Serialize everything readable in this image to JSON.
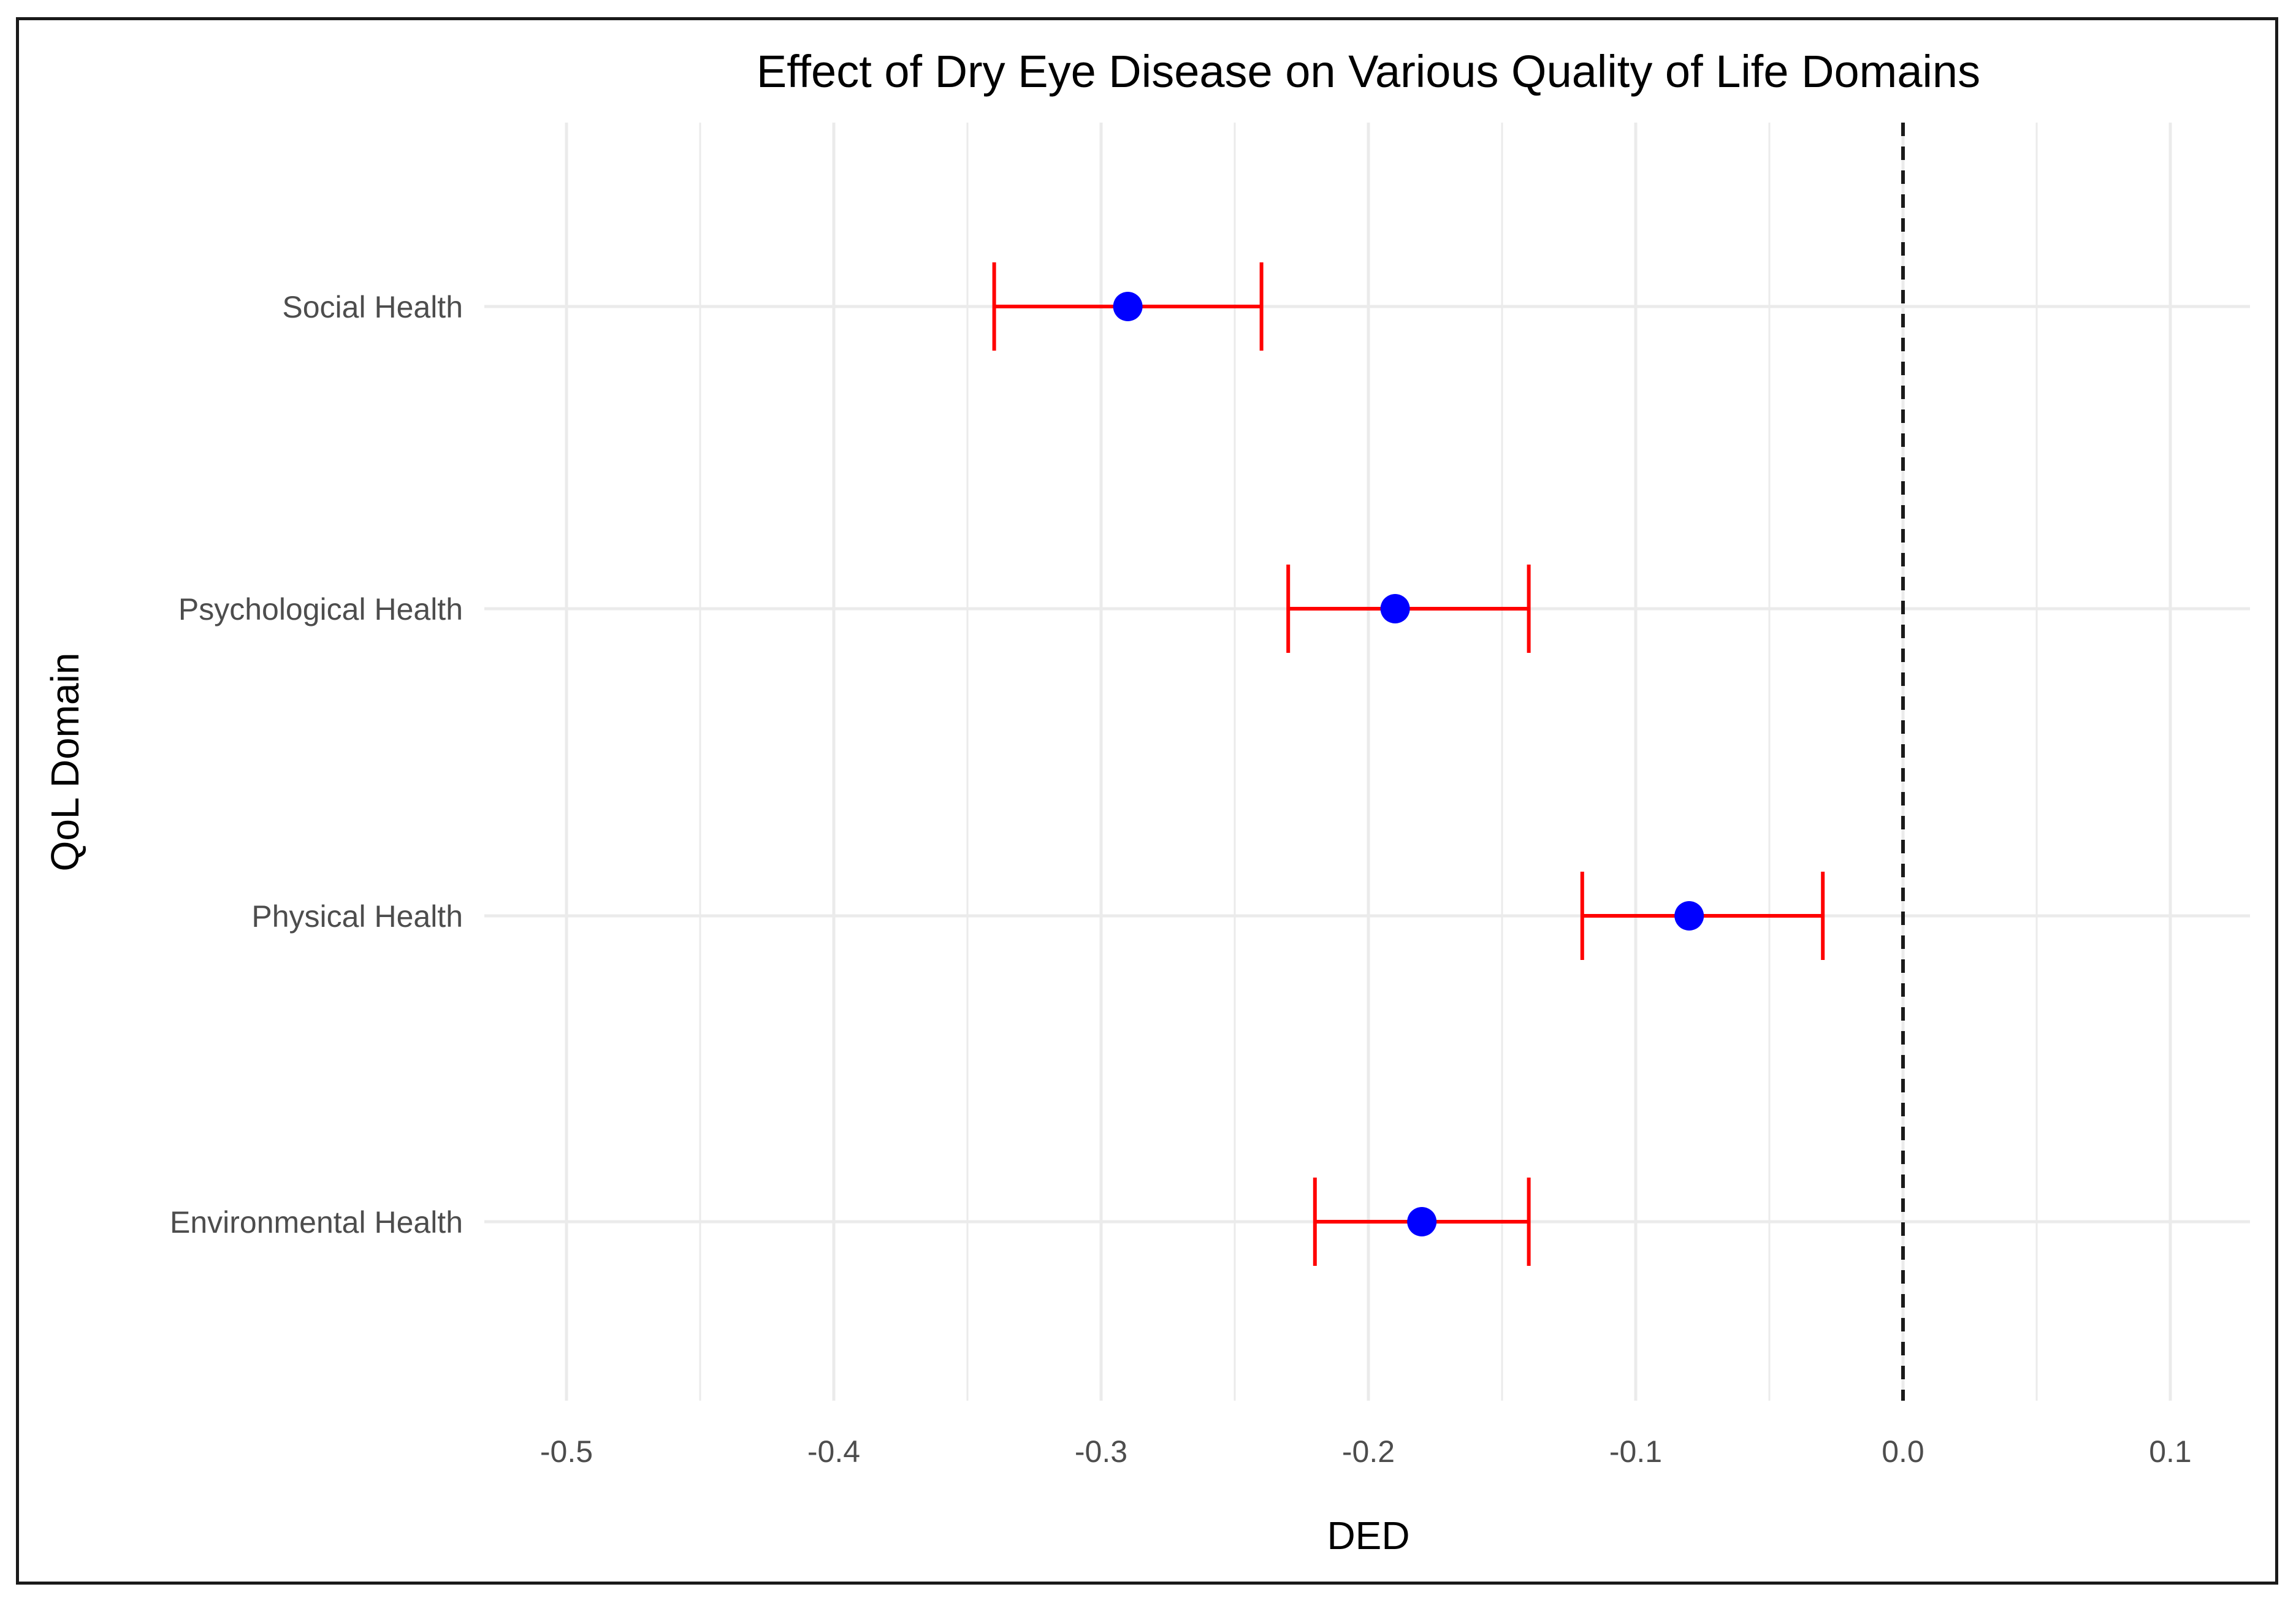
{
  "chart_data": {
    "type": "forest",
    "title": "Effect of Dry Eye Disease on Various Quality of Life Domains",
    "xlabel": "DED",
    "ylabel": "QoL Domain",
    "xlim": [
      -0.5,
      0.1
    ],
    "x_ticks": [
      -0.5,
      -0.4,
      -0.3,
      -0.2,
      -0.1,
      0.0,
      0.1
    ],
    "x_tick_labels": [
      "-0.5",
      "-0.4",
      "-0.3",
      "-0.2",
      "-0.1",
      "0.0",
      "0.1"
    ],
    "grid": true,
    "reference_line": {
      "x": 0.0,
      "style": "dashed"
    },
    "categories": [
      "Social Health",
      "Psychological Health",
      "Physical Health",
      "Environmental Health"
    ],
    "estimates": [
      -0.29,
      -0.19,
      -0.08,
      -0.18
    ],
    "ci_lower": [
      -0.34,
      -0.23,
      -0.12,
      -0.22
    ],
    "ci_upper": [
      -0.24,
      -0.14,
      -0.03,
      -0.14
    ],
    "colors": {
      "point": "#0000ff",
      "error_bar": "#ff0000",
      "grid": "#ebebeb",
      "reference": "#1a1a1a"
    }
  }
}
